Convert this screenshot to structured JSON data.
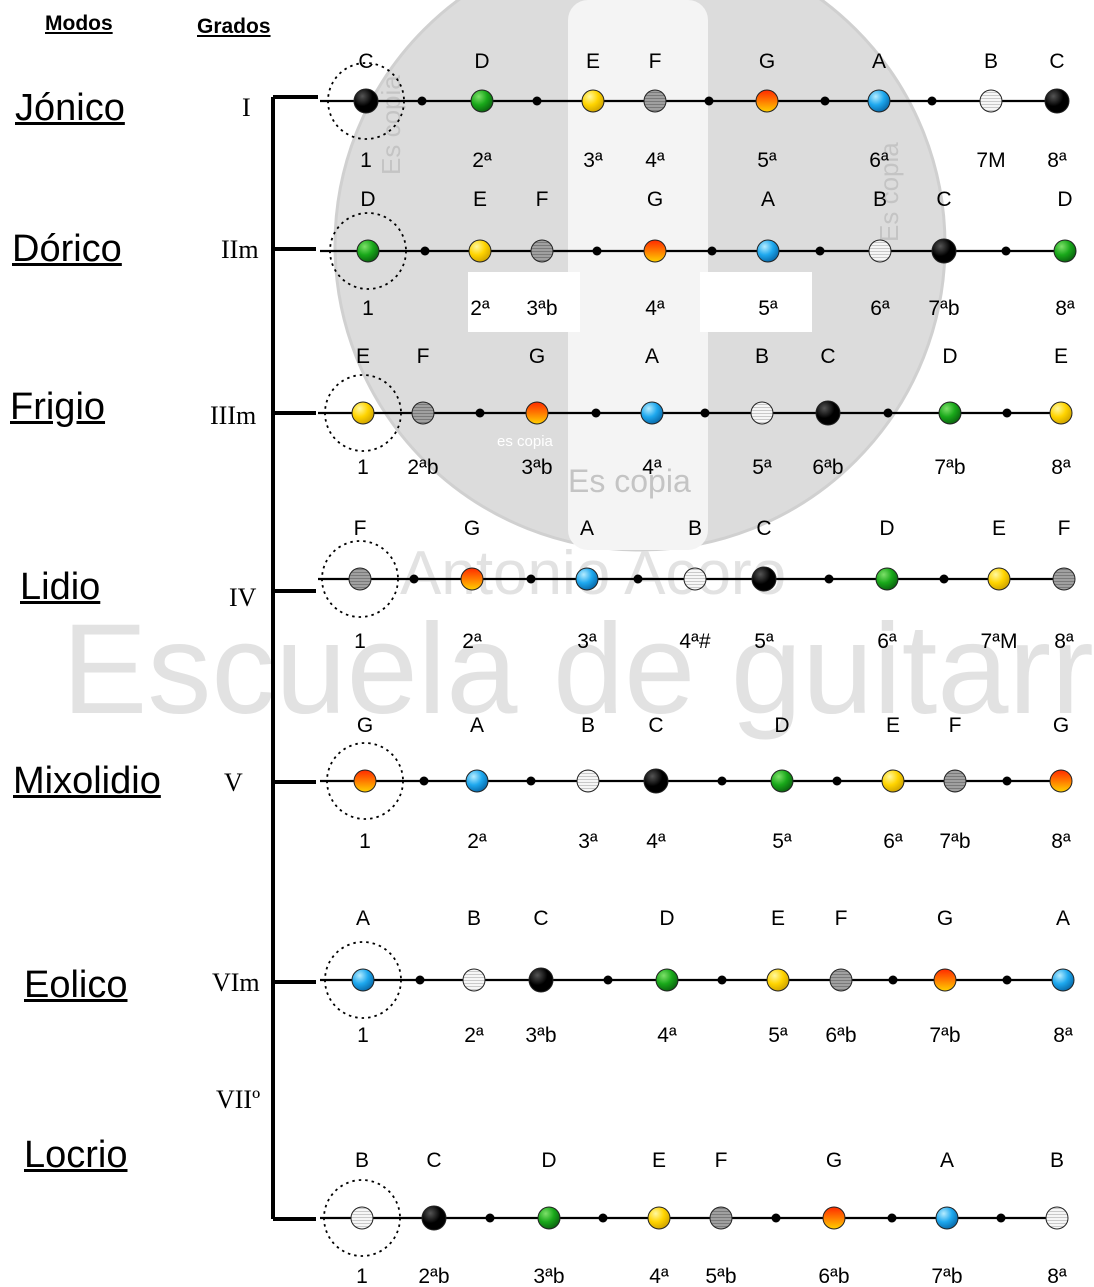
{
  "headers": {
    "modos": "Modos",
    "grados": "Grados"
  },
  "watermark": {
    "big": "Escuela de guitarr",
    "mid": "Antonio Acoro",
    "small_1": "Es copia",
    "small_2": "es copia",
    "small_3": "Es copia",
    "side_1": "Es copia",
    "side_2": "Es copia"
  },
  "note_colors": {
    "C": "black",
    "D": "green",
    "E": "yellow",
    "F": "grey-striped",
    "G": "orange-gradient",
    "A": "blue",
    "B": "white-striped"
  },
  "modes": [
    {
      "name": "Jónico",
      "grado": "I",
      "notes": [
        "C",
        "D",
        "E",
        "F",
        "G",
        "A",
        "B",
        "C"
      ],
      "degrees": [
        "1",
        "2ª",
        "3ª",
        "4ª",
        "5ª",
        "6ª",
        "7M",
        "8ª"
      ]
    },
    {
      "name": "Dórico",
      "grado": "IIm",
      "notes": [
        "D",
        "E",
        "F",
        "G",
        "A",
        "B",
        "C",
        "D"
      ],
      "degrees": [
        "1",
        "2ª",
        "3ªb",
        "4ª",
        "5ª",
        "6ª",
        "7ªb",
        "8ª"
      ]
    },
    {
      "name": "Frigio",
      "grado": "IIIm",
      "notes": [
        "E",
        "F",
        "G",
        "A",
        "B",
        "C",
        "D",
        "E"
      ],
      "degrees": [
        "1",
        "2ªb",
        "3ªb",
        "4ª",
        "5ª",
        "6ªb",
        "7ªb",
        "8ª"
      ]
    },
    {
      "name": "Lidio",
      "grado": "IV",
      "notes": [
        "F",
        "G",
        "A",
        "B",
        "C",
        "D",
        "E",
        "F"
      ],
      "degrees": [
        "1",
        "2ª",
        "3ª",
        "4ª#",
        "5ª",
        "6ª",
        "7ªM",
        "8ª"
      ]
    },
    {
      "name": "Mixolidio",
      "grado": "V",
      "notes": [
        "G",
        "A",
        "B",
        "C",
        "D",
        "E",
        "F",
        "G"
      ],
      "degrees": [
        "1",
        "2ª",
        "3ª",
        "4ª",
        "5ª",
        "6ª",
        "7ªb",
        "8ª"
      ]
    },
    {
      "name": "Eolico",
      "grado": "VIm",
      "notes": [
        "A",
        "B",
        "C",
        "D",
        "E",
        "F",
        "G",
        "A"
      ],
      "degrees": [
        "1",
        "2ª",
        "3ªb",
        "4ª",
        "5ª",
        "6ªb",
        "7ªb",
        "8ª"
      ]
    },
    {
      "name": "Locrio",
      "grado": "VIIº",
      "notes": [
        "B",
        "C",
        "D",
        "E",
        "F",
        "G",
        "A",
        "B"
      ],
      "degrees": [
        "1",
        "2ªb",
        "3ªb",
        "4ª",
        "5ªb",
        "6ªb",
        "7ªb",
        "8ª"
      ]
    }
  ]
}
